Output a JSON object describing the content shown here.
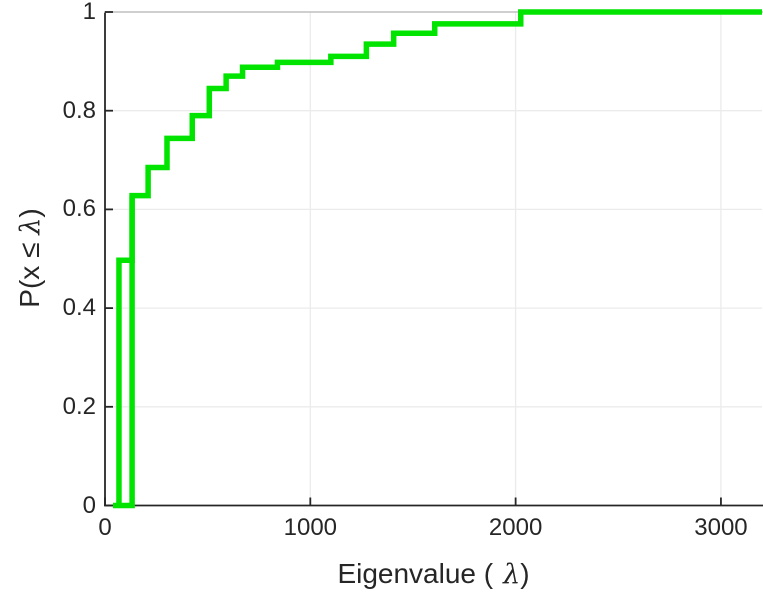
{
  "figure": {
    "background": "#ffffff"
  },
  "chart_data": {
    "type": "line",
    "subtype": "ecdf-step-plot",
    "title": "",
    "xlabel": {
      "prefix": "Eigenvalue (",
      "lambda": "λ",
      "suffix": ")"
    },
    "ylabel": {
      "prefix": "P(x ≤ ",
      "lambda": "λ",
      "suffix": ")"
    },
    "xlim": [
      0,
      3200
    ],
    "ylim": [
      0,
      1
    ],
    "xticks": [
      0,
      1000,
      2000,
      3000
    ],
    "xtick_labels": [
      "0",
      "1000",
      "2000",
      "3000"
    ],
    "yticks": [
      0,
      0.2,
      0.4,
      0.6,
      0.8,
      1
    ],
    "ytick_labels": [
      "0",
      "0.2",
      "0.4",
      "0.6",
      "0.8",
      "1"
    ],
    "grid": true,
    "legend": null,
    "line_color": "#00e400",
    "axis_color": "#262626",
    "grid_color": "#ebebeb",
    "baseline_start_x": 39,
    "full_height_riser_x": 132,
    "steps": [
      {
        "x": 68,
        "p": 0.497
      },
      {
        "x": 132,
        "p": 0.628
      },
      {
        "x": 210,
        "p": 0.685
      },
      {
        "x": 302,
        "p": 0.744
      },
      {
        "x": 425,
        "p": 0.79
      },
      {
        "x": 508,
        "p": 0.845
      },
      {
        "x": 590,
        "p": 0.87
      },
      {
        "x": 670,
        "p": 0.888
      },
      {
        "x": 840,
        "p": 0.898
      },
      {
        "x": 1100,
        "p": 0.91
      },
      {
        "x": 1273,
        "p": 0.935
      },
      {
        "x": 1406,
        "p": 0.957
      },
      {
        "x": 1606,
        "p": 0.976
      },
      {
        "x": 2025,
        "p": 1.0
      }
    ],
    "x_end": 3200
  }
}
